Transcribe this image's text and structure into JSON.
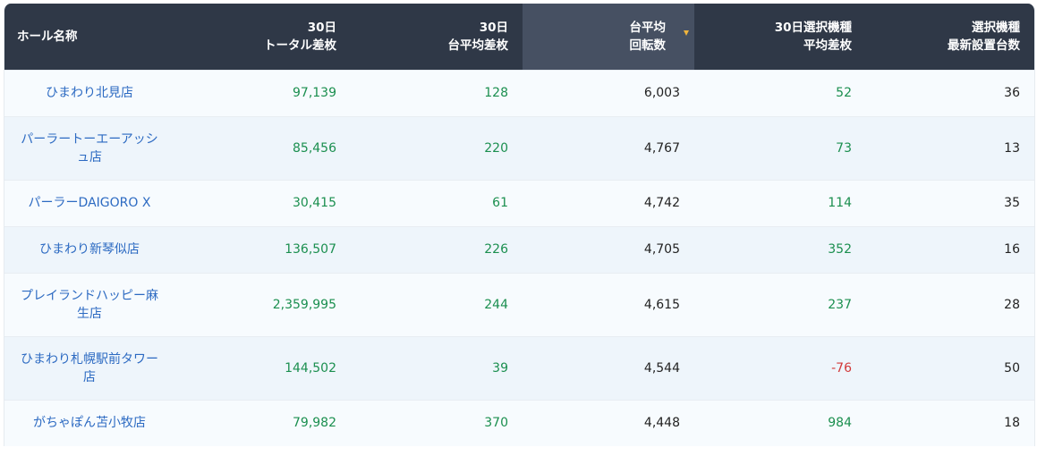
{
  "headers": {
    "hall_name": "ホール名称",
    "total_diff": [
      "30日",
      "トータル差枚"
    ],
    "avg_diff": [
      "30日",
      "台平均差枚"
    ],
    "avg_spins": [
      "台平均",
      "回転数"
    ],
    "selected_avg_diff": [
      "30日選択機種",
      "平均差枚"
    ],
    "selected_machines": [
      "選択機種",
      "最新設置台数"
    ]
  },
  "rows": [
    {
      "name": "ひまわり北見店",
      "total": "97,139",
      "avg": "128",
      "spins": "6,003",
      "sel_avg": "52",
      "sel_avg_sign": "pos",
      "machines": "36"
    },
    {
      "name": "パーラートーエーアッシュ店",
      "total": "85,456",
      "avg": "220",
      "spins": "4,767",
      "sel_avg": "73",
      "sel_avg_sign": "pos",
      "machines": "13"
    },
    {
      "name": "パーラーDAIGORO X",
      "total": "30,415",
      "avg": "61",
      "spins": "4,742",
      "sel_avg": "114",
      "sel_avg_sign": "pos",
      "machines": "35"
    },
    {
      "name": "ひまわり新琴似店",
      "total": "136,507",
      "avg": "226",
      "spins": "4,705",
      "sel_avg": "352",
      "sel_avg_sign": "pos",
      "machines": "16"
    },
    {
      "name": "プレイランドハッピー麻生店",
      "total": "2,359,995",
      "avg": "244",
      "spins": "4,615",
      "sel_avg": "237",
      "sel_avg_sign": "pos",
      "machines": "28"
    },
    {
      "name": "ひまわり札幌駅前タワー店",
      "total": "144,502",
      "avg": "39",
      "spins": "4,544",
      "sel_avg": "-76",
      "sel_avg_sign": "neg",
      "machines": "50"
    },
    {
      "name": "がちゃぽん苫小牧店",
      "total": "79,982",
      "avg": "370",
      "spins": "4,448",
      "sel_avg": "984",
      "sel_avg_sign": "pos",
      "machines": "18"
    }
  ],
  "colors": {
    "header_bg": "#2f3847",
    "sorted_header_bg": "#465062",
    "sort_indicator": "#f0b43c",
    "link": "#2c6ac2",
    "positive": "#1b8f4f",
    "negative": "#d23a3a"
  },
  "sort": {
    "column": "avg_spins",
    "direction": "desc",
    "icon": "sort-desc-icon"
  }
}
